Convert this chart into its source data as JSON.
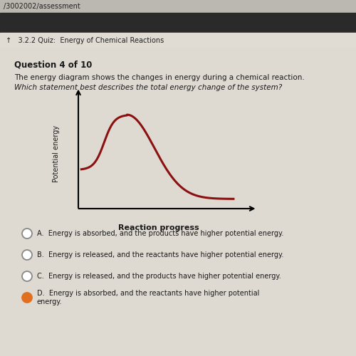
{
  "bg_color": "#d4d0c8",
  "url_bar_color": "#bab8b0",
  "url_text": "/3002002/assessment",
  "header_bar_color": "#2a2a2a",
  "nav_bar_color": "#e0dcd4",
  "nav_icon_text": "↑   3.2.2 Quiz:  Energy of Chemical Reactions",
  "content_color": "#dedad2",
  "question_number": "Question 4 of 10",
  "question_text_line1": "The energy diagram shows the changes in energy during a chemical reaction.",
  "question_text_line2": "Which statement best describes the total energy change of the system?",
  "curve_color": "#8b1010",
  "xlabel": "Reaction progress",
  "ylabel": "Potential energy",
  "options": [
    {
      "letter": "A.",
      "text": "Energy is absorbed, and the products have higher potential energy.",
      "selected": false
    },
    {
      "letter": "B.",
      "text": "Energy is released, and the reactants have higher potential energy.",
      "selected": false
    },
    {
      "letter": "C.",
      "text": "Energy is released, and the products have higher potential energy.",
      "selected": false
    },
    {
      "letter": "D.",
      "text": "Energy is absorbed, and the reactants have higher potential\nenergy.",
      "selected": true
    }
  ],
  "radio_color_unselected": "#ffffff",
  "radio_color_selected": "#e07020",
  "radio_edge_unselected": "#888888",
  "text_color": "#1a1a1a"
}
